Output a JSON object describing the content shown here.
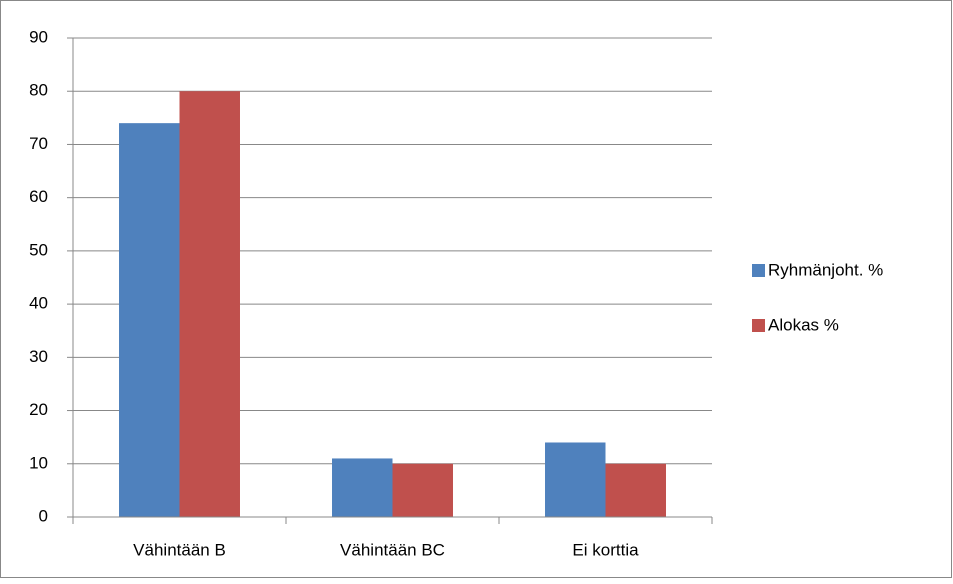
{
  "chart_data": {
    "type": "bar",
    "categories": [
      "Vähintään B",
      "Vähintään BC",
      "Ei korttia"
    ],
    "series": [
      {
        "name": "Ryhmänjoht. %",
        "color": "#4f81bd",
        "values": [
          74,
          11,
          14
        ]
      },
      {
        "name": "Alokas %",
        "color": "#c0504d",
        "values": [
          80,
          10,
          10
        ]
      }
    ],
    "ylim": [
      0,
      90
    ],
    "yticks": [
      0,
      10,
      20,
      30,
      40,
      50,
      60,
      70,
      80,
      90
    ],
    "grid": true,
    "legend": "right"
  }
}
